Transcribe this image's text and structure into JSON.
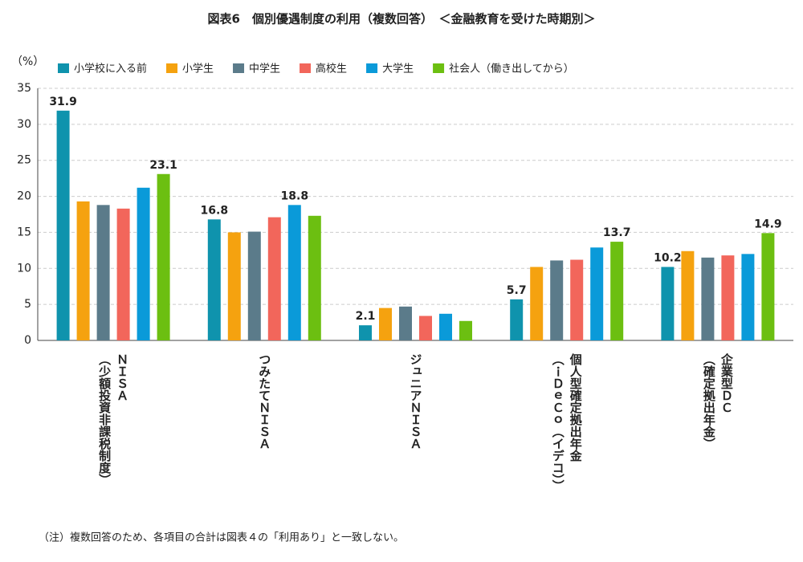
{
  "chart_data": {
    "type": "bar",
    "title": "図表6　個別優遇制度の利用（複数回答）　＜金融教育を受けた時期別＞",
    "y_label": "（%）",
    "note": "（注）複数回答のため、各項目の合計は図表４の「利用あり」と一致しない。",
    "categories": [
      "ＮＩＳＡ\n（少額投資非課税制度）",
      "つみたてＮＩＳＡ",
      "ジュニアＮＩＳＡ",
      "個人型確定拠出年金\n（ｉＤｅＣｏ（イデコ））",
      "企業型ＤＣ\n（確定拠出年金）"
    ],
    "series": [
      {
        "name": "小学校に入る前",
        "color": "#0f93ad",
        "values": [
          31.9,
          16.8,
          2.1,
          5.7,
          10.2
        ],
        "value_labels": [
          "31.9",
          "16.8",
          "2.1",
          "5.7",
          "10.2"
        ]
      },
      {
        "name": "小学生",
        "color": "#f5a20f",
        "values": [
          19.3,
          15.0,
          4.5,
          10.2,
          12.4
        ],
        "value_labels": [
          null,
          null,
          null,
          null,
          null
        ]
      },
      {
        "name": "中学生",
        "color": "#5b7b8a",
        "values": [
          18.8,
          15.1,
          4.7,
          11.1,
          11.5
        ],
        "value_labels": [
          null,
          null,
          null,
          null,
          null
        ]
      },
      {
        "name": "高校生",
        "color": "#f2665b",
        "values": [
          18.3,
          17.1,
          3.4,
          11.2,
          11.8
        ],
        "value_labels": [
          null,
          null,
          null,
          null,
          null
        ]
      },
      {
        "name": "大学生",
        "color": "#0a9ad9",
        "values": [
          21.2,
          18.8,
          3.7,
          12.9,
          12.0
        ],
        "value_labels": [
          null,
          "18.8",
          null,
          null,
          null
        ]
      },
      {
        "name": "社会人（働き出してから）",
        "color": "#6cbf11",
        "values": [
          23.1,
          17.3,
          2.7,
          13.7,
          14.9
        ],
        "value_labels": [
          "23.1",
          null,
          null,
          "13.7",
          "14.9"
        ]
      }
    ],
    "ylim": [
      0,
      35
    ],
    "yticks": [
      0,
      5,
      10,
      15,
      20,
      25,
      30,
      35
    ],
    "grid": true
  }
}
